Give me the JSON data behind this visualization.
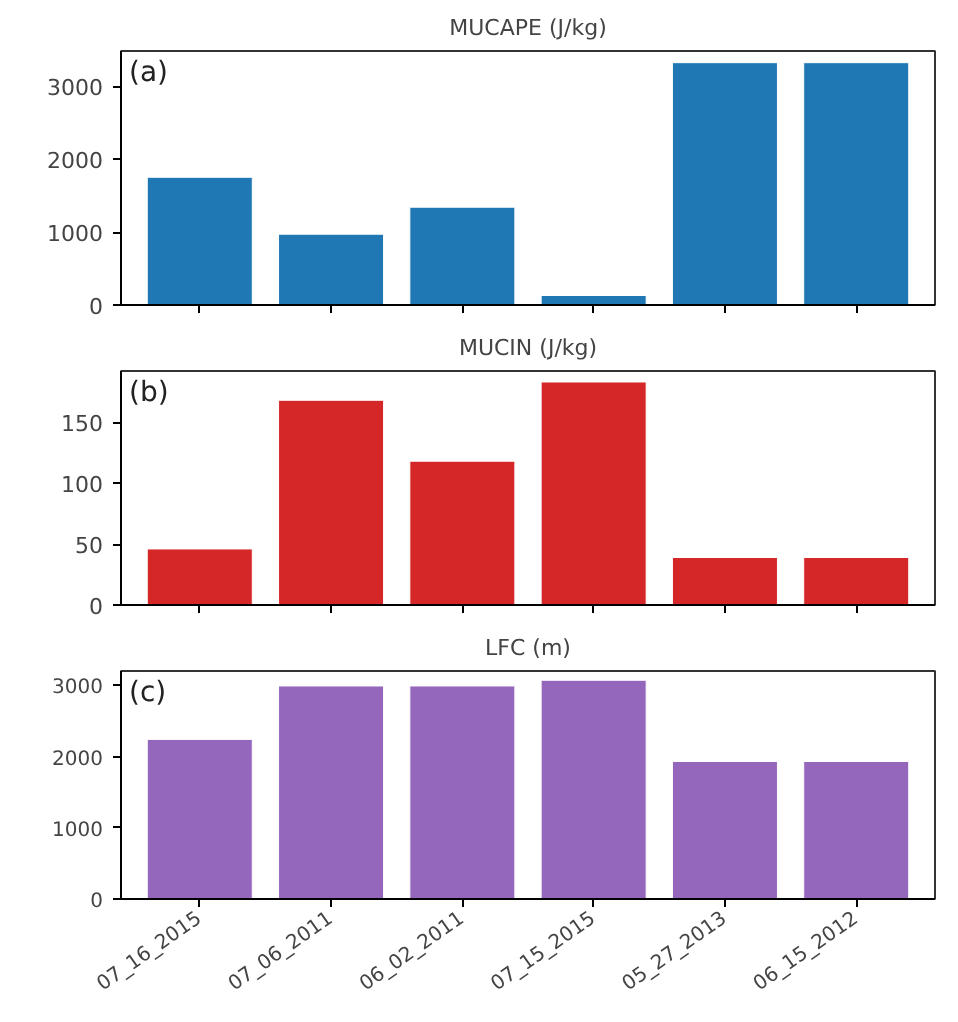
{
  "chart_data": [
    {
      "type": "bar",
      "title": "MUCAPE (J/kg)",
      "categories": [
        null,
        null,
        null,
        null,
        null,
        null
      ],
      "values": [
        1750,
        970,
        1340,
        130,
        3320,
        3320
      ],
      "color": "#1f77b4",
      "ylim": [
        0,
        3480
      ],
      "yticks": [
        0,
        1000,
        2000,
        3000
      ],
      "annotations": [
        "(a)"
      ],
      "grid": false,
      "tick_labels": "y"
    },
    {
      "type": "bar",
      "title": "MUCIN (J/kg)",
      "categories": [
        null,
        null,
        null,
        null,
        null,
        null
      ],
      "values": [
        46,
        168,
        118,
        183,
        39,
        39
      ],
      "color": "#d62728",
      "ylim": [
        0,
        192
      ],
      "yticks": [
        0,
        50,
        100,
        150
      ],
      "annotations": [
        "(b)"
      ],
      "grid": false,
      "tick_labels": "y"
    },
    {
      "type": "bar",
      "title": "LFC (m)",
      "categories": [
        "07_16_2015",
        "07_06_2011",
        "06_02_2011",
        "07_15_2015",
        "05_27_2013",
        "06_15_2012"
      ],
      "values": [
        2240,
        2990,
        2990,
        3070,
        1930,
        1930
      ],
      "color": "#9467bd",
      "ylim": [
        0,
        3200
      ],
      "yticks": [
        0,
        1000,
        2000,
        3000
      ],
      "annotations": [
        "(c)"
      ],
      "grid": false
    }
  ]
}
